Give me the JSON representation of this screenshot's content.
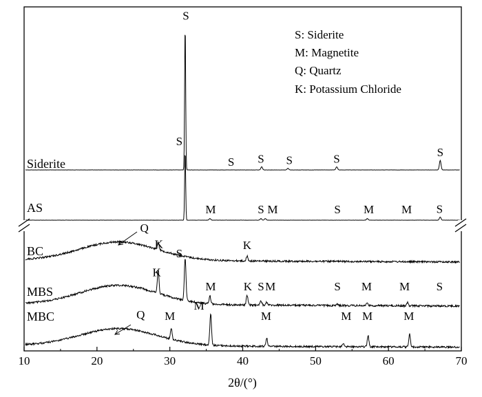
{
  "chart_data": {
    "type": "line",
    "title": "",
    "xlabel": "2θ/(°)",
    "ylabel": "",
    "xlim": [
      10,
      70
    ],
    "x_ticks": [
      10,
      20,
      30,
      40,
      50,
      60,
      70
    ],
    "y_ticks_shown": false,
    "y_axis_break": true,
    "legend": {
      "placement": "top-right",
      "entries": [
        "S: Siderite",
        "M: Magnetite",
        "Q: Quartz",
        "K: Potassium Chloride"
      ]
    },
    "series": [
      {
        "name": "Siderite",
        "peaks": [
          {
            "x": 32.1,
            "height": 0.92,
            "label": "S",
            "label_x": 32.2
          },
          {
            "x": 38.4,
            "height": 0.0,
            "label": "S",
            "label_x": 38.4
          },
          {
            "x": 42.6,
            "height": 0.02,
            "label": "S",
            "label_x": 42.5
          },
          {
            "x": 46.2,
            "height": 0.01,
            "label": "S",
            "label_x": 46.4
          },
          {
            "x": 52.9,
            "height": 0.02,
            "label": "S",
            "label_x": 52.9
          },
          {
            "x": 67.1,
            "height": 0.06,
            "label": "S",
            "label_x": 67.1
          }
        ]
      },
      {
        "name": "AS",
        "peaks": [
          {
            "x": 32.1,
            "height": 0.44,
            "label": "S",
            "label_x": 31.3
          },
          {
            "x": 35.5,
            "height": 0.01,
            "label": "M",
            "label_x": 35.6
          },
          {
            "x": 42.5,
            "height": 0.01,
            "label": "S",
            "label_x": 42.5
          },
          {
            "x": 43.1,
            "height": 0.01,
            "label": "M",
            "label_x": 44.1
          },
          {
            "x": 52.9,
            "height": 0.0,
            "label": "S",
            "label_x": 53.0
          },
          {
            "x": 57.1,
            "height": 0.01,
            "label": "M",
            "label_x": 57.3
          },
          {
            "x": 62.6,
            "height": 0.0,
            "label": "M",
            "label_x": 62.5
          },
          {
            "x": 67.1,
            "height": 0.02,
            "label": "S",
            "label_x": 67.0
          }
        ]
      },
      {
        "name": "BC",
        "amorphous_hump_center": 23,
        "peaks": [
          {
            "x": 23.0,
            "height": 0.0,
            "label": "Q",
            "label_x": 26.5
          },
          {
            "x": 28.4,
            "height": 0.05,
            "label": "K",
            "label_x": 28.5
          },
          {
            "x": 40.6,
            "height": 0.03,
            "label": "K",
            "label_x": 40.6
          }
        ]
      },
      {
        "name": "MBS",
        "amorphous_hump_center": 23,
        "peaks": [
          {
            "x": 28.4,
            "height": 0.15,
            "label": "K",
            "label_x": 28.2
          },
          {
            "x": 32.1,
            "height": 0.27,
            "label": "S",
            "label_x": 31.3
          },
          {
            "x": 35.5,
            "height": 0.05,
            "label": "M",
            "label_x": 35.6
          },
          {
            "x": 40.6,
            "height": 0.06,
            "label": "K",
            "label_x": 40.7
          },
          {
            "x": 42.5,
            "height": 0.03,
            "label": "S",
            "label_x": 42.5
          },
          {
            "x": 43.3,
            "height": 0.02,
            "label": "M",
            "label_x": 43.8
          },
          {
            "x": 52.9,
            "height": 0.01,
            "label": "S",
            "label_x": 53.0
          },
          {
            "x": 57.1,
            "height": 0.02,
            "label": "M",
            "label_x": 57.0
          },
          {
            "x": 62.6,
            "height": 0.02,
            "label": "M",
            "label_x": 62.2
          },
          {
            "x": 67.1,
            "height": 0.0,
            "label": "S",
            "label_x": 67.0
          }
        ]
      },
      {
        "name": "MBC",
        "amorphous_hump_center": 23,
        "peaks": [
          {
            "x": 23.0,
            "height": 0.0,
            "label": "Q",
            "label_x": 26.0
          },
          {
            "x": 30.2,
            "height": 0.07,
            "label": "M",
            "label_x": 30.0
          },
          {
            "x": 35.6,
            "height": 0.2,
            "label": "M",
            "label_x": 34.0
          },
          {
            "x": 43.3,
            "height": 0.05,
            "label": "M",
            "label_x": 43.2
          },
          {
            "x": 53.8,
            "height": 0.02,
            "label": "M",
            "label_x": 54.2
          },
          {
            "x": 57.2,
            "height": 0.07,
            "label": "M",
            "label_x": 57.1
          },
          {
            "x": 62.9,
            "height": 0.08,
            "label": "M",
            "label_x": 62.8
          }
        ]
      }
    ]
  }
}
